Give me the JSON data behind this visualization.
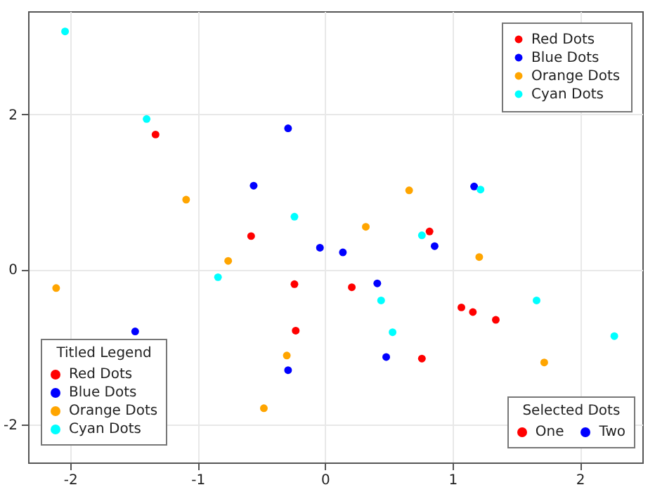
{
  "chart_data": {
    "type": "scatter",
    "xlim": [
      -2.33,
      2.49
    ],
    "ylim": [
      -2.49,
      3.33
    ],
    "xticks": [
      -2,
      -1,
      0,
      1,
      2
    ],
    "yticks": [
      -2,
      0,
      2
    ],
    "grid": true,
    "marker": "circle",
    "legend": "top right",
    "legend_title": "Titled Legend",
    "annotations": [
      "Selected Dots",
      "One",
      "Two"
    ],
    "series": [
      {
        "name": "Red Dots",
        "color": "#ff0000",
        "x": [
          -1.33,
          -0.58,
          0.82,
          -0.24,
          -0.23,
          0.21,
          1.07,
          1.16,
          1.34,
          0.76
        ],
        "values": [
          1.74,
          0.43,
          0.49,
          -0.19,
          -0.79,
          -0.23,
          -0.49,
          -0.55,
          -0.65,
          -1.15
        ]
      },
      {
        "name": "Blue Dots",
        "color": "#0000ff",
        "x": [
          -0.29,
          -0.56,
          -0.04,
          1.17,
          0.86,
          0.14,
          -1.49,
          -0.29,
          0.41,
          0.48
        ],
        "values": [
          1.82,
          1.08,
          0.28,
          1.07,
          0.3,
          0.22,
          -0.8,
          -1.3,
          -0.18,
          -1.13
        ]
      },
      {
        "name": "Orange Dots",
        "color": "#ffa500",
        "x": [
          -1.09,
          0.66,
          0.32,
          -0.76,
          1.21,
          -2.11,
          -0.3,
          -0.48,
          1.72
        ],
        "values": [
          0.9,
          1.02,
          0.55,
          0.11,
          0.16,
          -0.24,
          -1.11,
          -1.79,
          -1.2
        ]
      },
      {
        "name": "Cyan Dots",
        "color": "#00ffff",
        "x": [
          -2.04,
          -1.4,
          -0.24,
          0.76,
          1.22,
          -0.84,
          0.44,
          0.53,
          1.66,
          2.27
        ],
        "values": [
          3.07,
          1.94,
          0.68,
          0.44,
          1.03,
          -0.1,
          -0.4,
          -0.81,
          -0.4,
          -0.86
        ]
      }
    ]
  }
}
